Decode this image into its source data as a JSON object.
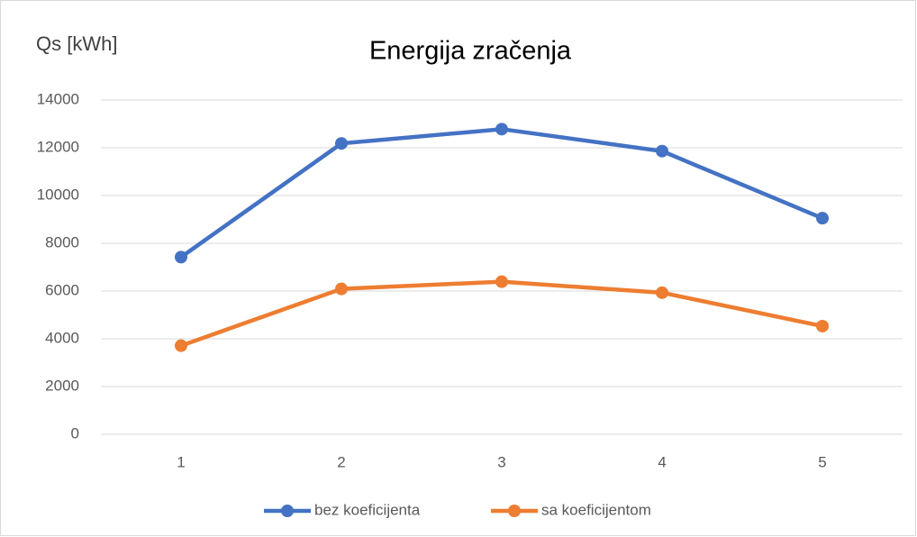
{
  "chart_data": {
    "type": "line",
    "title": "Energija zračenja",
    "y_label": "Qs [kWh]",
    "categories": [
      "1",
      "2",
      "3",
      "4",
      "5"
    ],
    "series": [
      {
        "name": "bez koeficijenta",
        "color": "#4472c4",
        "values": [
          7420,
          12180,
          12780,
          11860,
          9050
        ]
      },
      {
        "name": "sa koeficijentom",
        "color": "#ed7d31",
        "values": [
          3710,
          6090,
          6390,
          5930,
          4530
        ]
      }
    ],
    "ylim": [
      0,
      14000
    ],
    "yticks": [
      0,
      2000,
      4000,
      6000,
      8000,
      10000,
      12000,
      14000
    ],
    "grid": true,
    "legend": "bottom"
  }
}
